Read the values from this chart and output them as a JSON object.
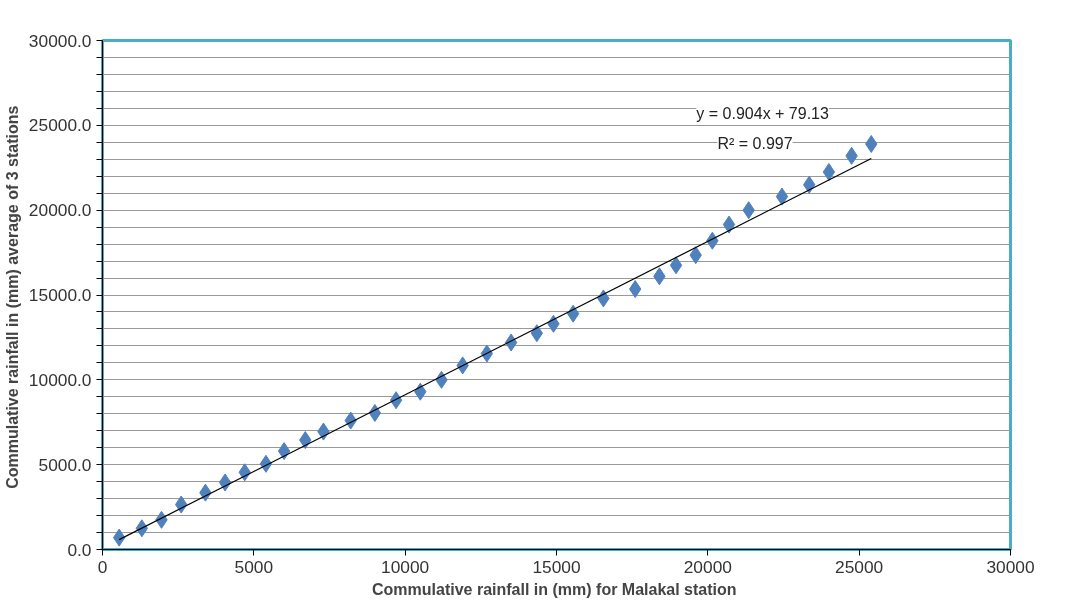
{
  "chart_data": {
    "type": "scatter",
    "xlabel": "Commulative rainfall in (mm) for Malakal  station",
    "ylabel": "Commulative  rainfall in (mm) average of 3 stations",
    "annotations": [
      "y = 0.904x + 79.13",
      "R² = 0.997"
    ],
    "marker": "diamond",
    "grid": "y",
    "xlim": [
      0,
      30000
    ],
    "xticks": [
      0,
      5000,
      10000,
      15000,
      20000,
      25000,
      30000
    ],
    "ylim": [
      0,
      30000
    ],
    "yticks": [
      {
        "value": 0,
        "label": "0.0"
      },
      {
        "value": 1000,
        "label": null
      },
      {
        "value": 2000,
        "label": null
      },
      {
        "value": 3000,
        "label": null
      },
      {
        "value": 4000,
        "label": null
      },
      {
        "value": 5000,
        "label": "5000.0"
      },
      {
        "value": 6000,
        "label": null
      },
      {
        "value": 7000,
        "label": null
      },
      {
        "value": 8000,
        "label": null
      },
      {
        "value": 9000,
        "label": null
      },
      {
        "value": 10000,
        "label": "10000.0"
      },
      {
        "value": 11000,
        "label": null
      },
      {
        "value": 12000,
        "label": null
      },
      {
        "value": 13000,
        "label": null
      },
      {
        "value": 14000,
        "label": null
      },
      {
        "value": 15000,
        "label": "15000.0"
      },
      {
        "value": 16000,
        "label": null
      },
      {
        "value": 17000,
        "label": null
      },
      {
        "value": 18000,
        "label": null
      },
      {
        "value": 19000,
        "label": null
      },
      {
        "value": 20000,
        "label": "20000.0"
      },
      {
        "value": 21000,
        "label": null
      },
      {
        "value": 22000,
        "label": null
      },
      {
        "value": 23000,
        "label": null
      },
      {
        "value": 24000,
        "label": null
      },
      {
        "value": 25000,
        "label": "25000.0"
      },
      {
        "value": 26000,
        "label": null
      },
      {
        "value": 27000,
        "label": null
      },
      {
        "value": 28000,
        "label": null
      },
      {
        "value": 29000,
        "label": null
      },
      {
        "value": 30000,
        "label": "30000.0"
      }
    ],
    "series": [
      {
        "color": "#4f81bd",
        "x": [
          550,
          1300,
          1950,
          2600,
          3400,
          4050,
          4700,
          5400,
          6000,
          6700,
          7300,
          8200,
          9000,
          9700,
          10500,
          11200,
          11900,
          12700,
          13500,
          14350,
          14900,
          15550,
          16550,
          17600,
          18400,
          18950,
          19600,
          20150,
          20700,
          21350,
          22450,
          23350,
          24000,
          24750,
          25400
        ],
        "values": [
          700,
          1250,
          1750,
          2650,
          3350,
          3950,
          4550,
          5050,
          5800,
          6450,
          6950,
          7600,
          8050,
          8800,
          9300,
          10000,
          10850,
          11550,
          12200,
          12750,
          13300,
          13900,
          14800,
          15350,
          16100,
          16750,
          17350,
          18200,
          19150,
          20000,
          20800,
          21500,
          22250,
          23200,
          23900
        ]
      },
      {
        "type": "line",
        "marker": "none",
        "color": "#000000",
        "x": [
          550,
          25400
        ],
        "values": [
          580,
          23040
        ]
      }
    ]
  }
}
